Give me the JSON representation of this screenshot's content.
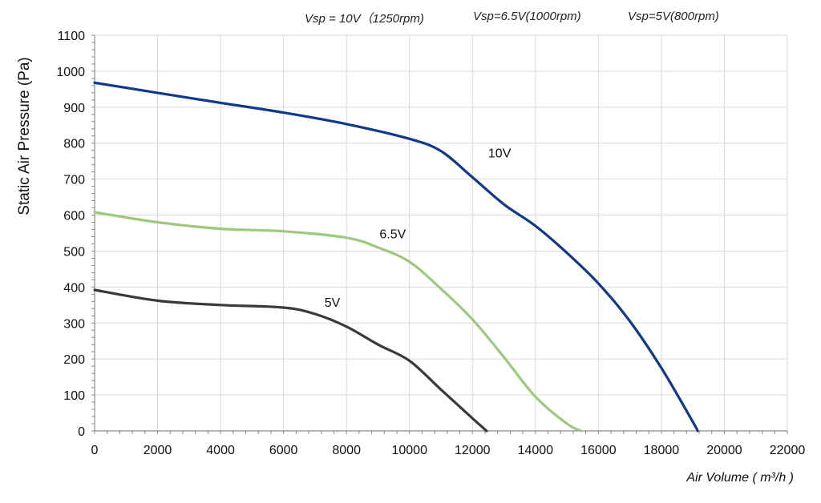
{
  "chart_data": {
    "type": "line",
    "xlabel": "Air Volume ( m³/h )",
    "ylabel": "Static Air Pressure  (Pa)",
    "xlim": [
      0,
      22000
    ],
    "ylim": [
      0,
      1100
    ],
    "x_ticks": [
      "0",
      "2000",
      "4000",
      "6000",
      "8000",
      "10000",
      "12000",
      "14000",
      "16000",
      "18000",
      "20000",
      "22000"
    ],
    "y_ticks": [
      "0",
      "100",
      "200",
      "300",
      "400",
      "500",
      "600",
      "700",
      "800",
      "900",
      "1000",
      "1100"
    ],
    "grid": true,
    "header_notes": [
      "Vsp = 10V（1250rpm)",
      "Vsp=6.5V(1000rpm)",
      "Vsp=5V(800rpm)"
    ],
    "series": [
      {
        "name": "10V",
        "color": "#0f3a8a",
        "x": [
          0,
          2000,
          4000,
          6000,
          8000,
          10000,
          11000,
          12000,
          13000,
          14000,
          15000,
          16000,
          17000,
          18000,
          19000,
          19150
        ],
        "y": [
          968,
          940,
          912,
          885,
          853,
          812,
          778,
          705,
          630,
          570,
          495,
          410,
          305,
          175,
          25,
          0
        ]
      },
      {
        "name": "6.5V",
        "color": "#9cc97f",
        "x": [
          0,
          2000,
          4000,
          6000,
          8000,
          9000,
          10000,
          11000,
          12000,
          13000,
          14000,
          15000,
          15450
        ],
        "y": [
          608,
          580,
          562,
          555,
          537,
          510,
          470,
          395,
          310,
          205,
          95,
          20,
          0
        ]
      },
      {
        "name": "5V",
        "color": "#3a3a3a",
        "x": [
          0,
          2000,
          4000,
          6000,
          7000,
          8000,
          9000,
          10000,
          11000,
          12000,
          12450
        ],
        "y": [
          392,
          362,
          350,
          343,
          325,
          290,
          240,
          195,
          115,
          35,
          0
        ]
      }
    ],
    "annotations": [
      {
        "text": "10V",
        "x": 12500,
        "y": 760
      },
      {
        "text": "6.5V",
        "x": 9050,
        "y": 535
      },
      {
        "text": "5V",
        "x": 7300,
        "y": 345
      }
    ]
  }
}
